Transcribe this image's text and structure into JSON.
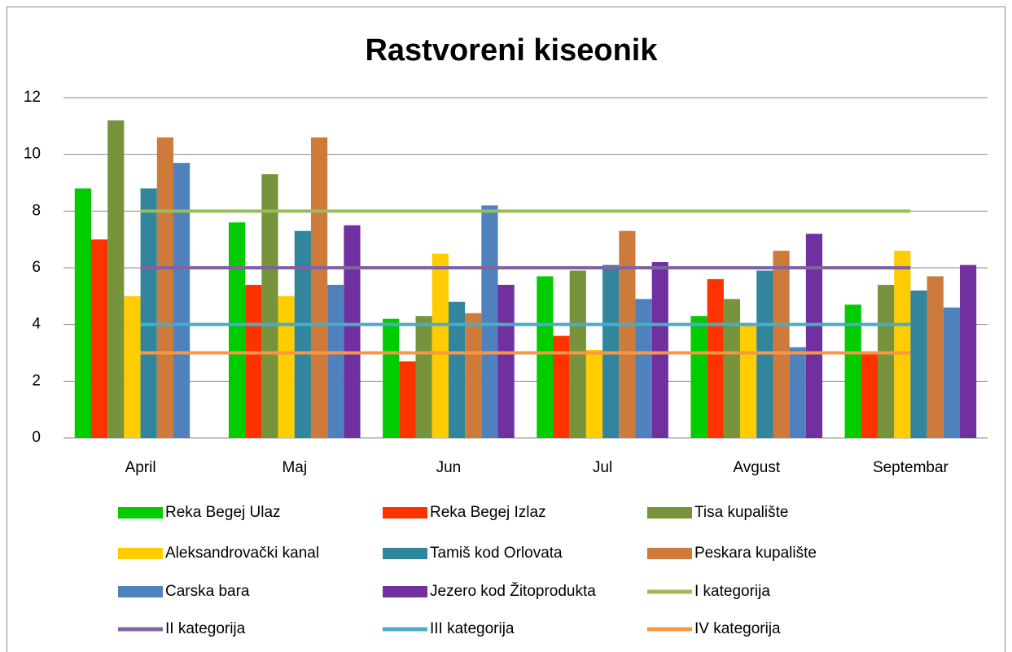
{
  "chart_data": {
    "type": "bar",
    "title": "Rastvoreni kiseonik",
    "categories": [
      "April",
      "Maj",
      "Jun",
      "Jul",
      "Avgust",
      "Septembar"
    ],
    "ylim": [
      0,
      12
    ],
    "yticks": [
      0,
      2,
      4,
      6,
      8,
      10,
      12
    ],
    "grid": true,
    "legend": "bottom",
    "series": [
      {
        "name": "Reka Begej Ulaz",
        "color": "#00cc00",
        "values": [
          8.8,
          7.6,
          4.2,
          5.7,
          4.3,
          4.7
        ]
      },
      {
        "name": "Reka Begej Izlaz",
        "color": "#ff3300",
        "values": [
          7.0,
          5.4,
          2.7,
          3.6,
          5.6,
          3.0
        ]
      },
      {
        "name": "Tisa kupalište",
        "color": "#77933c",
        "values": [
          11.2,
          9.3,
          4.3,
          5.9,
          4.9,
          5.4
        ]
      },
      {
        "name": "Aleksandrovački kanal",
        "color": "#ffcc00",
        "values": [
          5.0,
          5.0,
          6.5,
          3.1,
          4.0,
          6.6
        ]
      },
      {
        "name": "Tamiš kod Orlovata",
        "color": "#31859c",
        "values": [
          8.8,
          7.3,
          4.8,
          6.1,
          5.9,
          5.2
        ]
      },
      {
        "name": "Peskara kupalište",
        "color": "#cd7a3a",
        "values": [
          10.6,
          10.6,
          4.4,
          7.3,
          6.6,
          5.7
        ]
      },
      {
        "name": "Carska bara",
        "color": "#4f81bd",
        "values": [
          9.7,
          5.4,
          8.2,
          4.9,
          3.2,
          4.6
        ]
      },
      {
        "name": "Jezero kod Žitoprodukta",
        "color": "#7030a0",
        "values": [
          null,
          7.5,
          5.4,
          6.2,
          7.2,
          6.1
        ]
      },
      {
        "name": "I kategorija",
        "color": "#9bbb59",
        "type": "line",
        "values": [
          8,
          8,
          8,
          8,
          8,
          8
        ]
      },
      {
        "name": "II kategorija",
        "color": "#8064a2",
        "type": "line",
        "values": [
          6,
          6,
          6,
          6,
          6,
          6
        ]
      },
      {
        "name": "III kategorija",
        "color": "#4bacc6",
        "type": "line",
        "values": [
          4,
          4,
          4,
          4,
          4,
          4
        ]
      },
      {
        "name": "IV kategorija",
        "color": "#f79646",
        "type": "line",
        "values": [
          3,
          3,
          3,
          3,
          3,
          3
        ]
      }
    ]
  }
}
